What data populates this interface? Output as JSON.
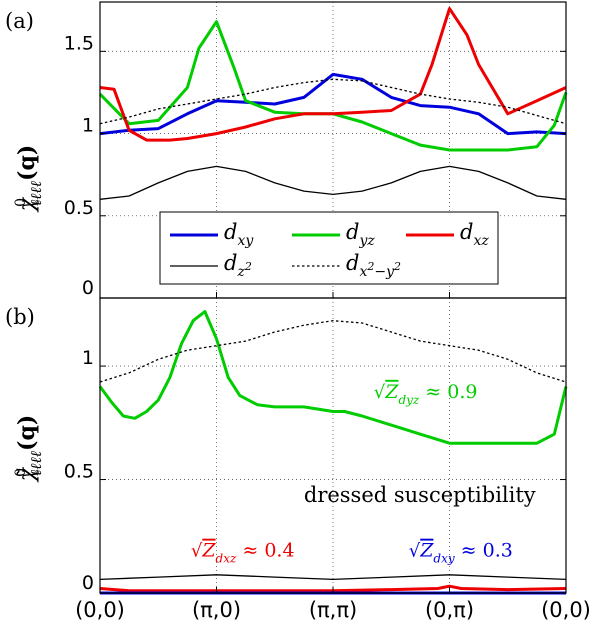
{
  "figure": {
    "x_ticks": [
      "(0,0)",
      "(π,0)",
      "(π,π)",
      "(0,π)",
      "(0,0)"
    ],
    "x_tick_positions": [
      0,
      1,
      2,
      3,
      4
    ]
  },
  "chart_data": [
    {
      "type": "line",
      "panel": "(a)",
      "ylabel": "χ⁰ℓℓℓℓ(q)",
      "ylim": [
        0,
        1.8
      ],
      "y_ticks": [
        0,
        0.5,
        1,
        1.5
      ],
      "y_tick_labels": [
        "0",
        "0.5",
        "1",
        "1.5"
      ],
      "xlim": [
        0,
        4
      ],
      "grid": "dotted",
      "legend": {
        "placement": "lower-center",
        "entries": [
          {
            "label": "d_xy",
            "color": "#0000dd",
            "style": "solid"
          },
          {
            "label": "d_yz",
            "color": "#00cc00",
            "style": "solid"
          },
          {
            "label": "d_xz",
            "color": "#ee0000",
            "style": "solid"
          },
          {
            "label": "d_z²",
            "color": "#000000",
            "style": "thin"
          },
          {
            "label": "d_x²−y²",
            "color": "#000000",
            "style": "dotted"
          }
        ]
      },
      "series": [
        {
          "name": "d_xy",
          "color": "#0000dd",
          "style": "solid",
          "x": [
            0,
            0.25,
            0.5,
            0.75,
            1.0,
            1.25,
            1.5,
            1.75,
            2.0,
            2.25,
            2.5,
            2.75,
            3.0,
            3.25,
            3.5,
            3.75,
            4.0
          ],
          "y": [
            1.0,
            1.02,
            1.03,
            1.12,
            1.2,
            1.19,
            1.18,
            1.22,
            1.36,
            1.33,
            1.22,
            1.17,
            1.16,
            1.12,
            1.0,
            1.01,
            1.0
          ]
        },
        {
          "name": "d_yz",
          "color": "#00cc00",
          "style": "solid",
          "x": [
            0,
            0.25,
            0.5,
            0.75,
            0.85,
            1.0,
            1.15,
            1.25,
            1.5,
            1.75,
            2.0,
            2.25,
            2.5,
            2.75,
            3.0,
            3.25,
            3.5,
            3.75,
            3.9,
            4.0
          ],
          "y": [
            1.24,
            1.06,
            1.08,
            1.28,
            1.52,
            1.68,
            1.4,
            1.2,
            1.13,
            1.12,
            1.12,
            1.07,
            1.0,
            0.93,
            0.9,
            0.9,
            0.9,
            0.92,
            1.05,
            1.25
          ]
        },
        {
          "name": "d_xz",
          "color": "#ee0000",
          "style": "solid",
          "x": [
            0,
            0.12,
            0.25,
            0.4,
            0.6,
            0.75,
            1.0,
            1.25,
            1.5,
            1.75,
            2.0,
            2.25,
            2.5,
            2.75,
            2.85,
            3.0,
            3.15,
            3.25,
            3.5,
            3.75,
            4.0
          ],
          "y": [
            1.28,
            1.27,
            1.02,
            0.96,
            0.96,
            0.97,
            1.0,
            1.04,
            1.09,
            1.12,
            1.12,
            1.13,
            1.14,
            1.24,
            1.42,
            1.76,
            1.6,
            1.42,
            1.12,
            1.2,
            1.28
          ]
        },
        {
          "name": "d_z²",
          "color": "#000000",
          "style": "thin",
          "x": [
            0,
            0.25,
            0.5,
            0.75,
            1.0,
            1.25,
            1.5,
            1.75,
            2.0,
            2.25,
            2.5,
            2.75,
            3.0,
            3.25,
            3.5,
            3.75,
            4.0
          ],
          "y": [
            0.6,
            0.62,
            0.7,
            0.77,
            0.8,
            0.77,
            0.7,
            0.65,
            0.63,
            0.65,
            0.7,
            0.77,
            0.8,
            0.77,
            0.7,
            0.62,
            0.6
          ]
        },
        {
          "name": "d_x²−y²",
          "color": "#000000",
          "style": "dotted",
          "x": [
            0,
            0.25,
            0.5,
            0.75,
            1.0,
            1.25,
            1.5,
            1.75,
            2.0,
            2.25,
            2.5,
            2.75,
            3.0,
            3.25,
            3.5,
            3.75,
            4.0
          ],
          "y": [
            1.06,
            1.1,
            1.15,
            1.18,
            1.21,
            1.24,
            1.28,
            1.31,
            1.33,
            1.32,
            1.28,
            1.24,
            1.21,
            1.19,
            1.16,
            1.11,
            1.06
          ]
        }
      ]
    },
    {
      "type": "line",
      "panel": "(b)",
      "ylabel": "χ̃⁰ℓℓℓℓ(q)",
      "ylim": [
        0,
        1.3
      ],
      "y_ticks": [
        0,
        0.5,
        1
      ],
      "y_tick_labels": [
        "0",
        "0.5",
        "1"
      ],
      "xlim": [
        0,
        4
      ],
      "grid": "dotted",
      "annotations": [
        {
          "text": "dressed susceptibility",
          "color": "#000000",
          "x": 1.75,
          "y": 0.4
        },
        {
          "text": "√Z_dyz ≈ 0.9",
          "color": "#00cc00",
          "x": 2.35,
          "y": 0.86
        },
        {
          "text": "√Z_dxz ≈ 0.4",
          "color": "#ee0000",
          "x": 0.78,
          "y": 0.16
        },
        {
          "text": "√Z_dxy ≈ 0.3",
          "color": "#0000dd",
          "x": 2.65,
          "y": 0.16
        }
      ],
      "series": [
        {
          "name": "d_yz",
          "color": "#00cc00",
          "style": "solid",
          "x": [
            0,
            0.1,
            0.2,
            0.3,
            0.4,
            0.5,
            0.6,
            0.7,
            0.8,
            0.9,
            1.0,
            1.1,
            1.2,
            1.35,
            1.5,
            1.75,
            2.0,
            2.1,
            2.25,
            2.5,
            2.75,
            3.0,
            3.25,
            3.5,
            3.6,
            3.75,
            3.9,
            4.0
          ],
          "y": [
            0.91,
            0.84,
            0.78,
            0.77,
            0.8,
            0.85,
            0.95,
            1.1,
            1.2,
            1.24,
            1.12,
            0.95,
            0.87,
            0.83,
            0.82,
            0.82,
            0.8,
            0.8,
            0.78,
            0.74,
            0.7,
            0.66,
            0.66,
            0.66,
            0.66,
            0.66,
            0.7,
            0.91
          ]
        },
        {
          "name": "d_x²−y²",
          "color": "#000000",
          "style": "dotted",
          "x": [
            0,
            0.25,
            0.5,
            0.75,
            1.0,
            1.25,
            1.5,
            1.75,
            2.0,
            2.25,
            2.5,
            2.75,
            3.0,
            3.25,
            3.5,
            3.75,
            4.0
          ],
          "y": [
            0.93,
            0.97,
            1.03,
            1.07,
            1.09,
            1.11,
            1.15,
            1.18,
            1.2,
            1.19,
            1.15,
            1.11,
            1.09,
            1.07,
            1.03,
            0.97,
            0.93
          ]
        },
        {
          "name": "d_z²",
          "color": "#000000",
          "style": "thin",
          "x": [
            0,
            0.5,
            1.0,
            1.5,
            2.0,
            2.5,
            3.0,
            3.5,
            4.0
          ],
          "y": [
            0.06,
            0.07,
            0.08,
            0.07,
            0.06,
            0.07,
            0.08,
            0.07,
            0.06
          ]
        },
        {
          "name": "d_xz",
          "color": "#ee0000",
          "style": "solid",
          "x": [
            0,
            0.25,
            0.5,
            1.0,
            1.5,
            2.0,
            2.5,
            2.9,
            3.0,
            3.1,
            3.5,
            4.0
          ],
          "y": [
            0.02,
            0.01,
            0.01,
            0.01,
            0.01,
            0.01,
            0.015,
            0.02,
            0.03,
            0.02,
            0.015,
            0.02
          ]
        },
        {
          "name": "d_xy",
          "color": "#0000dd",
          "style": "solid",
          "x": [
            0,
            1.0,
            2.0,
            3.0,
            4.0
          ],
          "y": [
            0.0,
            0.0,
            0.0,
            0.0,
            0.0
          ]
        }
      ]
    }
  ]
}
